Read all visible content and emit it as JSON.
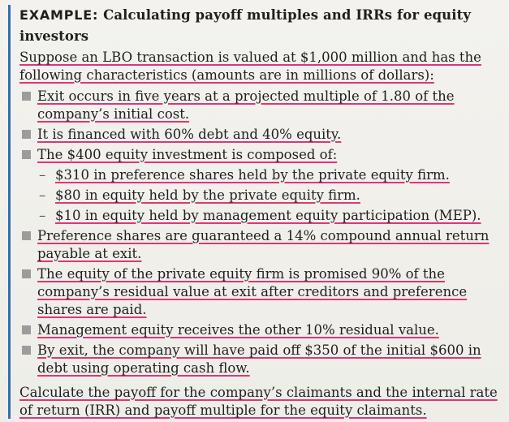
{
  "title": {
    "lead": "EXAMPLE:",
    "rest": "Calculating payoff multiples and IRRs for equity investors"
  },
  "intro": "Suppose an LBO transaction is valued at $1,000 million and has the following characteristics (amounts are in millions of dollars):",
  "bullets": [
    {
      "text": "Exit occurs in five years at a projected multiple of 1.80 of the company’s initial cost."
    },
    {
      "text": "It is financed with 60% debt and 40% equity."
    },
    {
      "text": "The $400 equity investment is composed of:",
      "sub": [
        "$310 in preference shares held by the private equity firm.",
        "$80 in equity held by the private equity firm.",
        "$10 in equity held by management equity participation (MEP)."
      ]
    },
    {
      "text": "Preference shares are guaranteed a 14% compound annual return payable at exit."
    },
    {
      "text": "The equity of the private equity firm is promised 90% of the company’s residual value at exit after creditors and preference shares are paid."
    },
    {
      "text": "Management equity receives the other 10% residual value."
    },
    {
      "text": "By exit, the company will have paid off $350 of the initial $600 in debt using operating cash flow."
    }
  ],
  "closing": "Calculate the payoff for the company’s claimants and the internal rate of return (IRR) and payoff multiple for the equity claimants.",
  "colors": {
    "highlight": "#e0357a",
    "rule": "#2f6fb3",
    "bullet": "#9c9c9c"
  }
}
